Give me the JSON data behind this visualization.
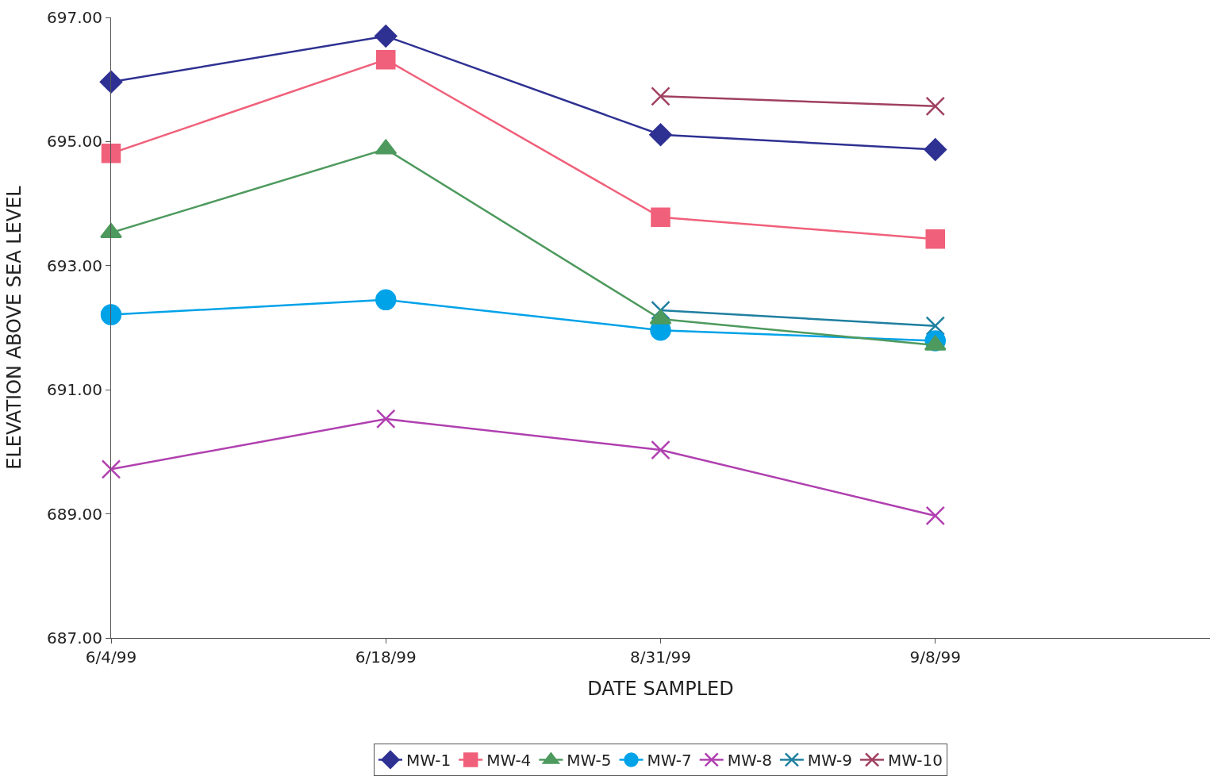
{
  "chart_data": {
    "type": "line",
    "xlabel": "DATE SAMPLED",
    "ylabel": "ELEVATION ABOVE SEA LEVEL",
    "categories": [
      "6/4/99",
      "6/18/99",
      "8/31/99",
      "9/8/99",
      null
    ],
    "ylim": [
      687,
      697
    ],
    "yticks": [
      {
        "value": 687,
        "label": "687.00"
      },
      {
        "value": 689,
        "label": "689.00"
      },
      {
        "value": 691,
        "label": "691.00"
      },
      {
        "value": 693,
        "label": "693.00"
      },
      {
        "value": 695,
        "label": "695.00"
      },
      {
        "value": 697,
        "label": "697.00"
      }
    ],
    "legend": "bottom",
    "line_style": "solid",
    "series": [
      {
        "name": "MW-1",
        "color": "#2e3192",
        "marker": "diamond",
        "values": [
          695.96,
          696.7,
          695.11,
          694.87,
          null
        ]
      },
      {
        "name": "MW-4",
        "color": "#f0607a",
        "marker": "square",
        "values": [
          694.81,
          696.32,
          693.78,
          693.43,
          null
        ]
      },
      {
        "name": "MW-5",
        "color": "#4e9a5e",
        "marker": "triangle",
        "values": [
          693.53,
          694.88,
          692.14,
          691.72,
          null
        ]
      },
      {
        "name": "MW-7",
        "color": "#00a2e8",
        "marker": "circle",
        "values": [
          692.21,
          692.45,
          691.96,
          691.79,
          null
        ]
      },
      {
        "name": "MW-8",
        "color": "#b040b0",
        "marker": "cross",
        "values": [
          689.72,
          690.53,
          690.03,
          688.97,
          null
        ]
      },
      {
        "name": "MW-9",
        "color": "#1f7fa0",
        "marker": "cross",
        "values": [
          null,
          null,
          692.28,
          692.03,
          null
        ]
      },
      {
        "name": "MW-10",
        "color": "#a04060",
        "marker": "cross",
        "values": [
          null,
          null,
          695.73,
          695.57,
          null
        ]
      }
    ]
  }
}
